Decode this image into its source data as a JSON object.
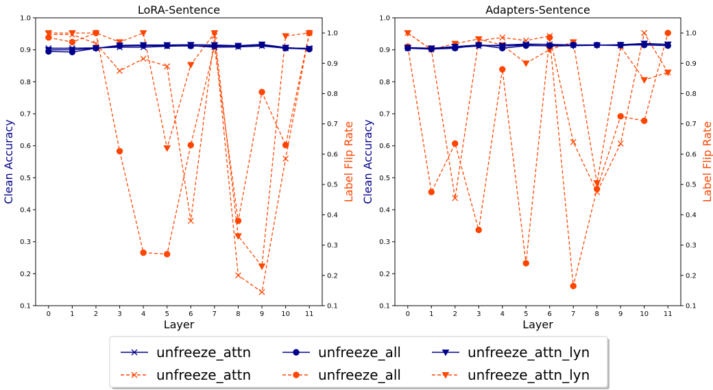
{
  "colors": {
    "clean": "#00008B",
    "flip": "#FF4500",
    "flip_marker_edge": "#FF4500"
  },
  "legend": {
    "items": [
      {
        "label": "unfreeze_attn",
        "axis": "clean",
        "marker": "x"
      },
      {
        "label": "unfreeze_all",
        "axis": "clean",
        "marker": "o"
      },
      {
        "label": "unfreeze_attn_lyn",
        "axis": "clean",
        "marker": "v"
      },
      {
        "label": "unfreeze_attn",
        "axis": "flip",
        "marker": "x"
      },
      {
        "label": "unfreeze_all",
        "axis": "flip",
        "marker": "o"
      },
      {
        "label": "unfreeze_attn_lyn",
        "axis": "flip",
        "marker": "v"
      }
    ],
    "placement": "bottom-center, 3 columns"
  },
  "chart_data": [
    {
      "type": "line",
      "title": "LoRA-Sentence",
      "xlabel": "Layer",
      "ylabel_left": "Clean Accuracy",
      "ylabel_right": "Label Flip Rate",
      "x": [
        "0",
        "1",
        "2",
        "3",
        "4",
        "5",
        "6",
        "7",
        "8",
        "9",
        "10",
        "11"
      ],
      "ylim_left": [
        0.1,
        1.0
      ],
      "ylim_right": [
        0.1,
        1.05
      ],
      "yticks_left": [
        "0.1",
        "0.2",
        "0.3",
        "0.4",
        "0.5",
        "0.6",
        "0.7",
        "0.8",
        "0.9",
        "1.0"
      ],
      "yticks_right": [
        "0.1",
        "0.2",
        "0.3",
        "0.4",
        "0.5",
        "0.6",
        "0.7",
        "0.8",
        "0.9",
        "1.0"
      ],
      "grid": false,
      "clean_series": [
        {
          "name": "unfreeze_attn",
          "marker": "x",
          "values": [
            0.905,
            0.905,
            0.906,
            0.908,
            0.908,
            0.911,
            0.913,
            0.908,
            0.909,
            0.912,
            0.905,
            0.905
          ]
        },
        {
          "name": "unfreeze_all",
          "marker": "o",
          "values": [
            0.895,
            0.893,
            0.905,
            0.912,
            0.913,
            0.913,
            0.912,
            0.912,
            0.912,
            0.915,
            0.905,
            0.902
          ]
        },
        {
          "name": "unfreeze_attn_lyn",
          "marker": "v",
          "values": [
            0.9,
            0.9,
            0.905,
            0.914,
            0.915,
            0.915,
            0.916,
            0.915,
            0.913,
            0.917,
            0.907,
            0.903
          ]
        }
      ],
      "flip_series": [
        {
          "name": "unfreeze_attn",
          "marker": "x",
          "values": [
            0.995,
            0.995,
            0.965,
            0.875,
            0.915,
            0.89,
            0.38,
            0.99,
            0.2,
            0.145,
            0.585,
            1.0
          ]
        },
        {
          "name": "unfreeze_all",
          "marker": "o",
          "values": [
            0.985,
            0.97,
            1.0,
            0.61,
            0.275,
            0.27,
            0.63,
            0.955,
            0.38,
            0.805,
            0.63,
            1.0
          ]
        },
        {
          "name": "unfreeze_attn_lyn",
          "marker": "v",
          "values": [
            1.0,
            1.0,
            1.0,
            0.97,
            1.0,
            0.62,
            0.895,
            1.0,
            0.33,
            0.23,
            0.99,
            1.0
          ]
        }
      ]
    },
    {
      "type": "line",
      "title": "Adapters-Sentence",
      "xlabel": "Layer",
      "ylabel_left": "Clean Accuracy",
      "ylabel_right": "Label Flip Rate",
      "x": [
        "0",
        "1",
        "2",
        "3",
        "4",
        "5",
        "6",
        "7",
        "8",
        "9",
        "10",
        "11"
      ],
      "ylim_left": [
        0.1,
        1.0
      ],
      "ylim_right": [
        0.1,
        1.05
      ],
      "yticks_left": [
        "0.1",
        "0.2",
        "0.3",
        "0.4",
        "0.5",
        "0.6",
        "0.7",
        "0.8",
        "0.9",
        "1.0"
      ],
      "yticks_right": [
        "0.1",
        "0.2",
        "0.3",
        "0.4",
        "0.5",
        "0.6",
        "0.7",
        "0.8",
        "0.9",
        "1.0"
      ],
      "grid": false,
      "clean_series": [
        {
          "name": "unfreeze_attn",
          "marker": "x",
          "values": [
            0.905,
            0.905,
            0.907,
            0.912,
            0.915,
            0.918,
            0.917,
            0.915,
            0.915,
            0.913,
            0.918,
            0.917
          ]
        },
        {
          "name": "unfreeze_all",
          "marker": "o",
          "values": [
            0.905,
            0.902,
            0.905,
            0.915,
            0.905,
            0.913,
            0.913,
            0.915,
            0.915,
            0.915,
            0.915,
            0.913
          ]
        },
        {
          "name": "unfreeze_attn_lyn",
          "marker": "v",
          "values": [
            0.907,
            0.905,
            0.91,
            0.915,
            0.912,
            0.915,
            0.912,
            0.913,
            0.914,
            0.916,
            0.92,
            0.917
          ]
        }
      ],
      "flip_series": [
        {
          "name": "unfreeze_attn",
          "marker": "x",
          "values": [
            1.0,
            0.945,
            0.455,
            0.975,
            0.985,
            0.975,
            0.99,
            0.64,
            0.475,
            0.635,
            1.0,
            0.87
          ]
        },
        {
          "name": "unfreeze_all",
          "marker": "o",
          "values": [
            0.955,
            0.475,
            0.635,
            0.35,
            0.88,
            0.24,
            0.985,
            0.165,
            0.485,
            0.725,
            0.71,
            1.0
          ]
        },
        {
          "name": "unfreeze_attn_lyn",
          "marker": "v",
          "values": [
            1.0,
            0.945,
            0.965,
            0.98,
            0.96,
            0.9,
            0.945,
            0.97,
            0.505,
            0.955,
            0.845,
            0.87
          ]
        }
      ]
    }
  ]
}
